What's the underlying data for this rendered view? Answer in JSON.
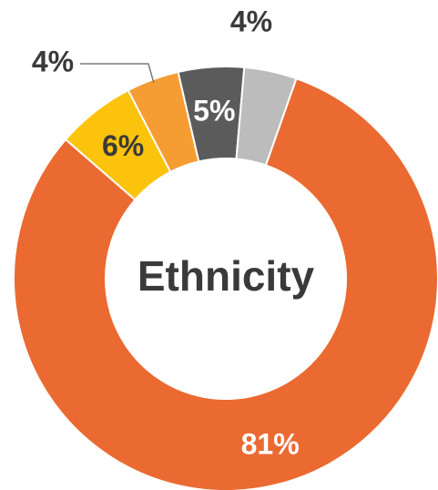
{
  "chart_data": {
    "type": "pie",
    "variant": "donut",
    "title": "Ethnicity",
    "categories": [
      "",
      "",
      "",
      "",
      ""
    ],
    "values": [
      81,
      6,
      4,
      5,
      4
    ],
    "value_labels": [
      "81%",
      "6%",
      "4%",
      "5%",
      "4%"
    ],
    "colors": [
      "#eb6a31",
      "#fcc30c",
      "#f59c33",
      "#5b5b5b",
      "#bcbcbc"
    ],
    "label_colors": [
      "#ffffff",
      "#3a3a3a",
      "#3a3a3a",
      "#ffffff",
      "#3a3a3a"
    ],
    "label_placement": [
      "inside",
      "inside",
      "outside-left",
      "inside",
      "outside-top"
    ],
    "legend": "none"
  }
}
